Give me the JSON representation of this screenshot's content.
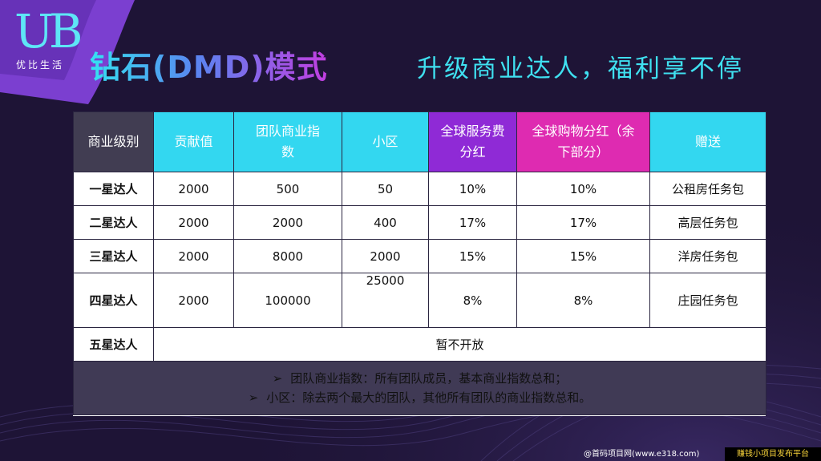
{
  "colors": {
    "background": "#1e1436",
    "accent_cyan": "#33d7f0",
    "accent_purple": "#8f2ad6",
    "accent_magenta": "#de2bb1",
    "header_dark": "#413d52"
  },
  "logo": {
    "letters": "UB",
    "tagline": "优比生活"
  },
  "title": {
    "main": "钻石(DMD)模式",
    "subtitle": "升级商业达人，福利享不停"
  },
  "table": {
    "headers": {
      "level": "商业级别",
      "contribution": "贡献值",
      "team_index": "团队商业指数",
      "small_zone": "小区",
      "global_service": "全球服务费分红",
      "global_shopping": "全球购物分红（余下部分）",
      "gift": "赠送"
    },
    "rows": [
      {
        "level": "一星达人",
        "contribution": "2000",
        "team_index": "500",
        "small_zone": "50",
        "global_service": "10%",
        "global_shopping": "10%",
        "gift": "公租房任务包"
      },
      {
        "level": "二星达人",
        "contribution": "2000",
        "team_index": "2000",
        "small_zone": "400",
        "global_service": "17%",
        "global_shopping": "17%",
        "gift": "高层任务包"
      },
      {
        "level": "三星达人",
        "contribution": "2000",
        "team_index": "8000",
        "small_zone": "2000",
        "global_service": "15%",
        "global_shopping": "15%",
        "gift": "洋房任务包"
      },
      {
        "level": "四星达人",
        "contribution": "2000",
        "team_index": "100000",
        "small_zone": "25000",
        "global_service": "8%",
        "global_shopping": "8%",
        "gift": "庄园任务包"
      }
    ],
    "row5": {
      "level": "五星达人",
      "status": "暂不开放"
    },
    "notes": [
      {
        "bullet": "➢",
        "text": "团队商业指数：所有团队成员，基本商业指数总和；"
      },
      {
        "bullet": "➢",
        "text": "小区：除去两个最大的团队，其他所有团队的商业指数总和。"
      }
    ]
  },
  "footer": {
    "left": "@首码项目网(www.e318.com)",
    "right": "赚钱小项目发布平台"
  }
}
